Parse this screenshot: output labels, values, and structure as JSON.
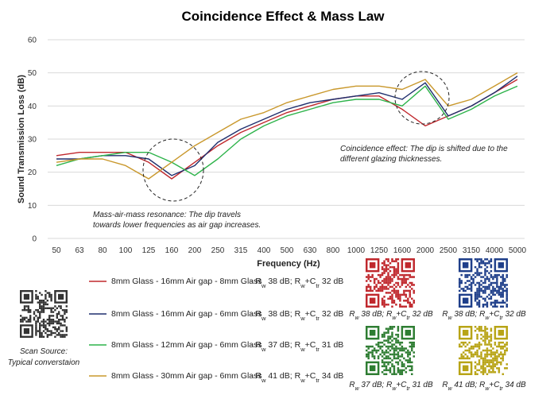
{
  "chart_data": {
    "type": "line",
    "title": "Coincidence Effect & Mass Law",
    "xlabel": "Frequency (Hz)",
    "ylabel": "Sound Transmission  Loss (dB)",
    "ylim": [
      0,
      60
    ],
    "yticks": [
      "0",
      "10",
      "20",
      "30",
      "40",
      "50",
      "60"
    ],
    "categories": [
      "50",
      "63",
      "80",
      "100",
      "125",
      "160",
      "200",
      "250",
      "315",
      "400",
      "500",
      "630",
      "800",
      "1000",
      "1250",
      "1600",
      "2000",
      "2500",
      "3150",
      "4000",
      "5000"
    ],
    "grid": true,
    "series": [
      {
        "name": "8mm Glass - 16mm Air gap - 8mm Glass",
        "color": "#c0282d",
        "rw": "38",
        "rwctr": "32",
        "values": [
          25,
          26,
          26,
          26,
          23,
          18,
          23,
          28,
          32,
          35,
          38,
          40,
          42,
          43,
          43,
          39,
          34,
          37,
          40,
          44,
          48
        ]
      },
      {
        "name": "8mm Glass - 16mm Air gap - 6mm Glass",
        "color": "#1f2f6e",
        "rw": "38",
        "rwctr": "32",
        "values": [
          24,
          24,
          25,
          25,
          24,
          19,
          22,
          29,
          33,
          36,
          39,
          41,
          42,
          43,
          44,
          42,
          47,
          37,
          40,
          44,
          49
        ]
      },
      {
        "name": "8mm Glass - 12mm Air gap - 6mm Glass",
        "color": "#2db34a",
        "rw": "37",
        "rwctr": "31",
        "values": [
          22,
          24,
          25,
          26,
          26,
          23,
          19,
          24,
          30,
          34,
          37,
          39,
          41,
          42,
          42,
          40,
          46,
          36,
          39,
          43,
          46
        ]
      },
      {
        "name": "8mm Glass - 30mm Air gap - 6mm Glass",
        "color": "#c9982c",
        "rw": "41",
        "rwctr": "34",
        "values": [
          23,
          24,
          24,
          22,
          18,
          23,
          28,
          32,
          36,
          38,
          41,
          43,
          45,
          46,
          46,
          45,
          48,
          40,
          42,
          46,
          50
        ]
      }
    ],
    "annotations": [
      {
        "name": "mass-air-mass",
        "lines": [
          "Mass-air-mass resonance: The dip travels",
          "towards lower frequencies as air gap increases."
        ]
      },
      {
        "name": "coincidence",
        "lines": [
          "Coincidence effect: The dip is shifted due to the",
          "different glazing thicknesses."
        ]
      }
    ]
  },
  "legend": {
    "rw_prefix": "- R",
    "rw_sub": "w",
    "rw_unit": " dB; R",
    "ctr_join": "+C",
    "ctr_sub": "tr",
    "db": " dB"
  },
  "qr_codes": [
    {
      "caption_pre": "R",
      "sub1": "w",
      "mid": " 38 dB; R",
      "sub2": "w",
      "plus": "+C",
      "sub3": "tr",
      "post": " 32 dB",
      "color": "#c0282d"
    },
    {
      "caption_pre": "R",
      "sub1": "w",
      "mid": " 38 dB; R",
      "sub2": "w",
      "plus": "+C",
      "sub3": "tr",
      "post": " 32 dB",
      "color": "#1f3f8a"
    },
    {
      "caption_pre": "R",
      "sub1": "w",
      "mid": " 37 dB; R",
      "sub2": "w",
      "plus": "+C",
      "sub3": "tr",
      "post": " 31 dB",
      "color": "#2e7d32"
    },
    {
      "caption_pre": "R",
      "sub1": "w",
      "mid": " 41 dB; R",
      "sub2": "w",
      "plus": "+C",
      "sub3": "tr",
      "post": " 34 dB",
      "color": "#b8a416"
    }
  ],
  "scan": {
    "line1": "Scan Source:",
    "line2": "Typical converstaion"
  }
}
